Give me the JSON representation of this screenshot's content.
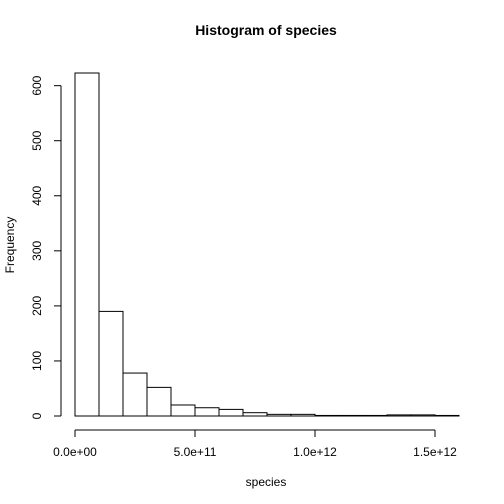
{
  "chart_data": {
    "type": "bar",
    "title": "Histogram of species",
    "xlabel": "species",
    "ylabel": "Frequency",
    "bin_width": 100000000000,
    "bins": [
      {
        "from": 0,
        "to": 100000000000,
        "count": 623
      },
      {
        "from": 100000000000,
        "to": 200000000000,
        "count": 190
      },
      {
        "from": 200000000000,
        "to": 300000000000,
        "count": 78
      },
      {
        "from": 300000000000,
        "to": 400000000000,
        "count": 52
      },
      {
        "from": 400000000000,
        "to": 500000000000,
        "count": 20
      },
      {
        "from": 500000000000,
        "to": 600000000000,
        "count": 15
      },
      {
        "from": 600000000000,
        "to": 700000000000,
        "count": 12
      },
      {
        "from": 700000000000,
        "to": 800000000000,
        "count": 6
      },
      {
        "from": 800000000000,
        "to": 900000000000,
        "count": 3
      },
      {
        "from": 900000000000,
        "to": 1000000000000,
        "count": 3
      },
      {
        "from": 1000000000000,
        "to": 1100000000000,
        "count": 1
      },
      {
        "from": 1100000000000,
        "to": 1200000000000,
        "count": 1
      },
      {
        "from": 1200000000000,
        "to": 1300000000000,
        "count": 1
      },
      {
        "from": 1300000000000,
        "to": 1400000000000,
        "count": 2
      },
      {
        "from": 1400000000000,
        "to": 1500000000000,
        "count": 2
      },
      {
        "from": 1500000000000,
        "to": 1600000000000,
        "count": 1
      }
    ],
    "xlim": [
      0,
      1600000000000
    ],
    "ylim": [
      0,
      623
    ],
    "x_ticks": [
      {
        "value": 0,
        "label": "0.0e+00"
      },
      {
        "value": 500000000000,
        "label": "5.0e+11"
      },
      {
        "value": 1000000000000,
        "label": "1.0e+12"
      },
      {
        "value": 1500000000000,
        "label": "1.5e+12"
      }
    ],
    "y_ticks": [
      {
        "value": 0,
        "label": "0"
      },
      {
        "value": 100,
        "label": "100"
      },
      {
        "value": 200,
        "label": "200"
      },
      {
        "value": 300,
        "label": "300"
      },
      {
        "value": 400,
        "label": "400"
      },
      {
        "value": 500,
        "label": "500"
      },
      {
        "value": 600,
        "label": "600"
      }
    ],
    "grid": false,
    "bar_fill": "#ffffff",
    "bar_stroke": "#000000"
  }
}
